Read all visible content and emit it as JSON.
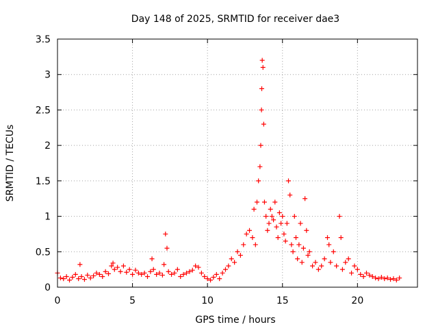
{
  "chart_data": {
    "type": "scatter",
    "title": "Day 148 of 2025, SRMTID for receiver dae3",
    "xlabel": "GPS time / hours",
    "ylabel": "SRMTID / TECUs",
    "xlim": [
      0,
      24
    ],
    "ylim": [
      0,
      3.5
    ],
    "xticks": [
      0,
      5,
      10,
      15,
      20
    ],
    "xtick_labels": [
      "0",
      "5",
      "10",
      "15",
      "20"
    ],
    "yticks": [
      0,
      0.5,
      1,
      1.5,
      2,
      2.5,
      3,
      3.5
    ],
    "ytick_labels": [
      "0",
      "0.5",
      "1",
      "1.5",
      "2",
      "2.5",
      "3",
      "3.5"
    ],
    "grid": true,
    "marker": "+",
    "series": [
      {
        "name": "SRMTID",
        "color": "#ff0000",
        "x": [
          0.0,
          0.2,
          0.4,
          0.6,
          0.8,
          1.0,
          1.2,
          1.4,
          1.5,
          1.6,
          1.8,
          2.0,
          2.2,
          2.4,
          2.6,
          2.8,
          3.0,
          3.2,
          3.4,
          3.6,
          3.7,
          3.8,
          4.0,
          4.2,
          4.4,
          4.6,
          4.8,
          5.0,
          5.2,
          5.4,
          5.6,
          5.8,
          6.0,
          6.2,
          6.3,
          6.4,
          6.6,
          6.8,
          7.0,
          7.1,
          7.2,
          7.3,
          7.4,
          7.6,
          7.8,
          8.0,
          8.2,
          8.4,
          8.6,
          8.8,
          9.0,
          9.2,
          9.4,
          9.6,
          9.8,
          10.0,
          10.2,
          10.4,
          10.6,
          10.8,
          11.0,
          11.2,
          11.4,
          11.6,
          11.8,
          12.0,
          12.2,
          12.4,
          12.6,
          12.8,
          13.0,
          13.1,
          13.2,
          13.3,
          13.4,
          13.5,
          13.55,
          13.6,
          13.62,
          13.65,
          13.7,
          13.75,
          13.8,
          13.9,
          14.0,
          14.1,
          14.2,
          14.3,
          14.4,
          14.5,
          14.6,
          14.7,
          14.8,
          14.9,
          15.0,
          15.1,
          15.2,
          15.3,
          15.4,
          15.5,
          15.6,
          15.7,
          15.8,
          15.9,
          16.0,
          16.1,
          16.2,
          16.3,
          16.4,
          16.5,
          16.6,
          16.7,
          16.8,
          17.0,
          17.2,
          17.4,
          17.6,
          17.8,
          18.0,
          18.1,
          18.2,
          18.4,
          18.6,
          18.8,
          18.9,
          19.0,
          19.2,
          19.4,
          19.6,
          19.8,
          20.0,
          20.2,
          20.4,
          20.6,
          20.8,
          21.0,
          21.2,
          21.4,
          21.6,
          21.8,
          22.0,
          22.2,
          22.4,
          22.6,
          22.8
        ],
        "y": [
          0.2,
          0.13,
          0.12,
          0.15,
          0.1,
          0.14,
          0.18,
          0.12,
          0.32,
          0.15,
          0.11,
          0.17,
          0.13,
          0.16,
          0.2,
          0.18,
          0.15,
          0.22,
          0.19,
          0.3,
          0.34,
          0.25,
          0.28,
          0.22,
          0.3,
          0.21,
          0.25,
          0.18,
          0.24,
          0.2,
          0.18,
          0.2,
          0.15,
          0.22,
          0.4,
          0.25,
          0.18,
          0.2,
          0.17,
          0.32,
          0.75,
          0.55,
          0.22,
          0.18,
          0.2,
          0.25,
          0.15,
          0.18,
          0.2,
          0.22,
          0.24,
          0.3,
          0.28,
          0.2,
          0.15,
          0.12,
          0.1,
          0.14,
          0.18,
          0.12,
          0.2,
          0.25,
          0.3,
          0.4,
          0.35,
          0.5,
          0.45,
          0.6,
          0.75,
          0.8,
          0.7,
          1.1,
          0.6,
          1.2,
          1.5,
          1.7,
          2.0,
          2.5,
          2.8,
          3.2,
          3.1,
          2.3,
          1.2,
          1.0,
          0.8,
          0.9,
          1.1,
          1.0,
          0.95,
          1.2,
          0.85,
          0.7,
          1.05,
          0.9,
          1.0,
          0.75,
          0.65,
          0.9,
          1.5,
          1.3,
          0.6,
          0.5,
          1.0,
          0.7,
          0.4,
          0.6,
          0.9,
          0.35,
          0.55,
          1.25,
          0.8,
          0.45,
          0.5,
          0.3,
          0.35,
          0.25,
          0.3,
          0.4,
          0.7,
          0.6,
          0.35,
          0.5,
          0.3,
          1.0,
          0.7,
          0.25,
          0.35,
          0.4,
          0.2,
          0.3,
          0.25,
          0.18,
          0.15,
          0.2,
          0.17,
          0.15,
          0.13,
          0.12,
          0.14,
          0.12,
          0.13,
          0.11,
          0.12,
          0.1,
          0.13
        ]
      }
    ]
  }
}
